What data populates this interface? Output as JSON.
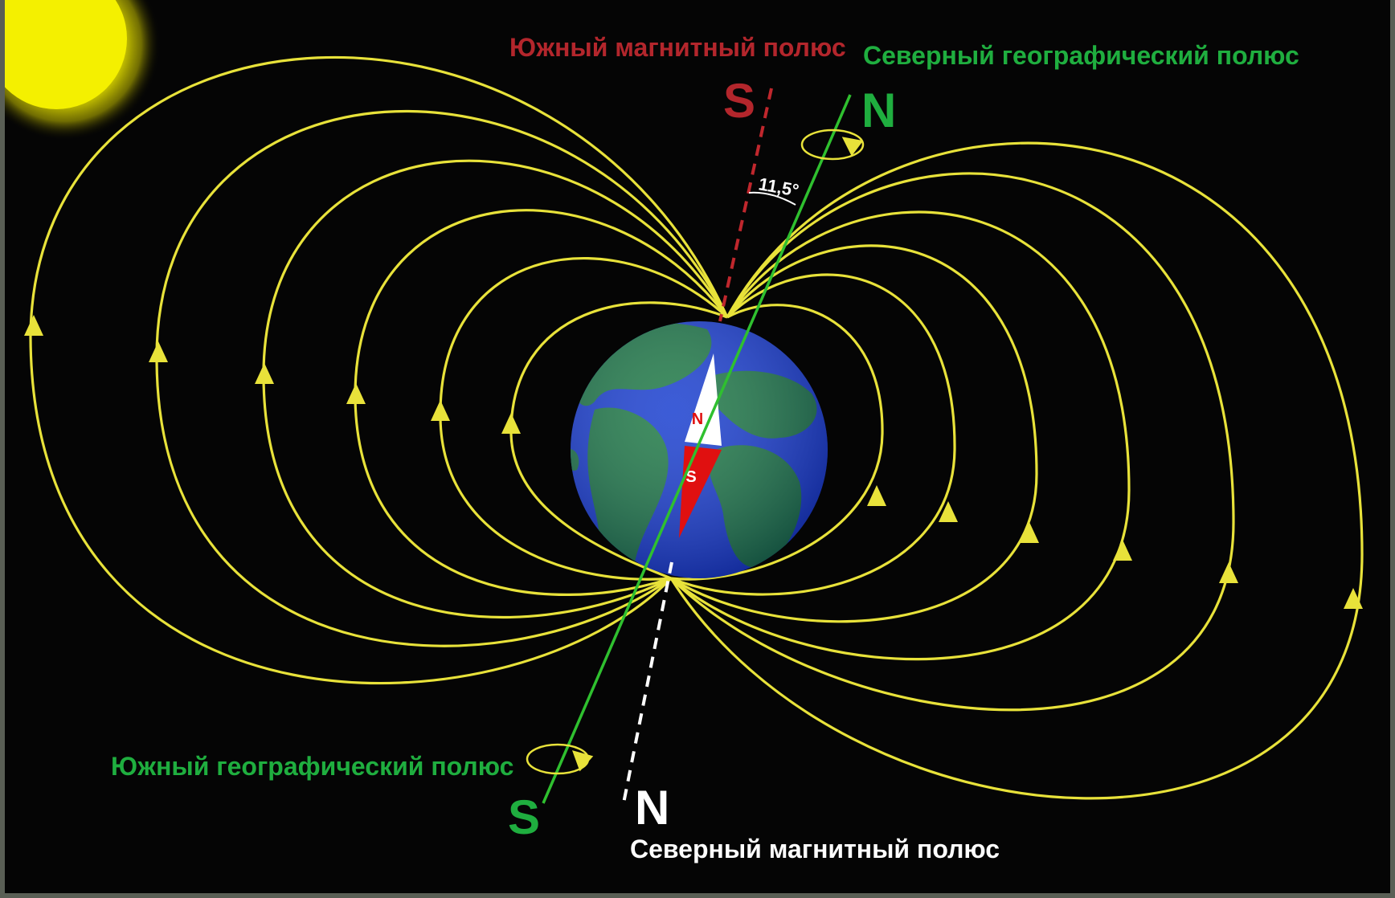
{
  "labels": {
    "south_magnetic_pole": "Южный магнитный полюс",
    "north_geographic_pole": "Северный географический полюс",
    "south_geographic_pole": "Южный географический полюс",
    "north_magnetic_pole": "Северный магнитный полюс",
    "top_magnetic_letter": "S",
    "top_geographic_letter": "N",
    "bottom_geographic_letter": "S",
    "bottom_magnetic_letter": "N",
    "angle": "11,5°",
    "compass_north": "N",
    "compass_south": "S"
  },
  "colors": {
    "background": "#050505",
    "sun": "#f4f000",
    "field_lines": "#e8e23a",
    "ocean": "#1a3fd0",
    "land": "#1e7a45",
    "magnetic_label": "#b3262c",
    "geographic_label": "#1fae3f",
    "geographic_axis": "#2fc02f",
    "magnetic_axis_top": "#c0272d",
    "magnetic_axis_bottom": "#ffffff",
    "compass_north": "#ffffff",
    "compass_south": "#e01010"
  },
  "icons": {
    "sun": "sun-icon",
    "earth": "earth-globe-icon",
    "compass": "compass-needle-icon",
    "rotation": "rotation-arrow-icon"
  }
}
